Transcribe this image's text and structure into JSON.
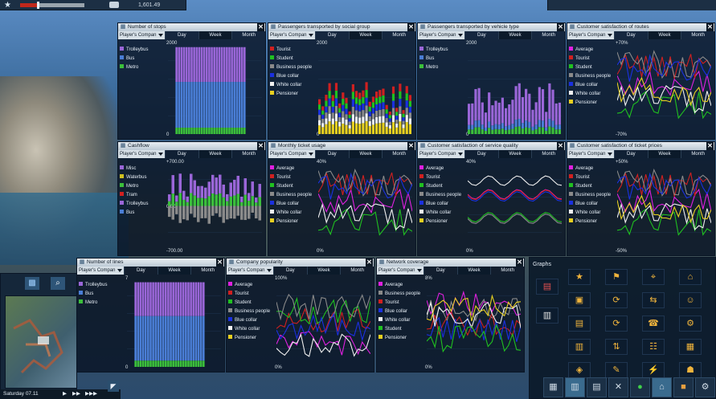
{
  "topbar": {
    "money": "1,601.49"
  },
  "company": "Player's Compan",
  "tabs": [
    "Day",
    "Week",
    "Month"
  ],
  "panels": {
    "stops": {
      "title": "Number of stops",
      "ymax": "2000",
      "ymin": "0",
      "legend": [
        {
          "label": "Trolleybus",
          "color": "#9a66d8"
        },
        {
          "label": "Bus",
          "color": "#4a7ed6"
        },
        {
          "label": "Metro",
          "color": "#3bbf3b"
        }
      ]
    },
    "social": {
      "title": "Passengers transported by social group",
      "ymax": "2000",
      "ymin": "0",
      "legend": [
        {
          "label": "Tourist",
          "color": "#d02020"
        },
        {
          "label": "Student",
          "color": "#20c020"
        },
        {
          "label": "Business people",
          "color": "#8a8a8a"
        },
        {
          "label": "Blue collar",
          "color": "#1a30e0"
        },
        {
          "label": "White collar",
          "color": "#f0f0f0"
        },
        {
          "label": "Pensioner",
          "color": "#e8d020"
        }
      ]
    },
    "vehicle": {
      "title": "Passengers transported by vehicle type",
      "ymax": "2000",
      "ymin": "0",
      "legend": [
        {
          "label": "Trolleybus",
          "color": "#9a66d8"
        },
        {
          "label": "Bus",
          "color": "#4a7ed6"
        },
        {
          "label": "Metro",
          "color": "#3bbf3b"
        }
      ]
    },
    "routes": {
      "title": "Customer satisfaction of routes",
      "ymax": "+70%",
      "ymin": "-70%",
      "legend": [
        {
          "label": "Average",
          "color": "#e020e0"
        },
        {
          "label": "Tourist",
          "color": "#d02020"
        },
        {
          "label": "Student",
          "color": "#20c020"
        },
        {
          "label": "Business people",
          "color": "#8a8a8a"
        },
        {
          "label": "Blue collar",
          "color": "#1a30e0"
        },
        {
          "label": "White collar",
          "color": "#f0f0f0"
        },
        {
          "label": "Pensioner",
          "color": "#e8d020"
        }
      ]
    },
    "cashflow": {
      "title": "Cashflow",
      "ymax": "+700.00",
      "ymid": "0.00",
      "ymin": "-700.00",
      "legend": [
        {
          "label": "Misc",
          "color": "#9a66d8"
        },
        {
          "label": "Waterbus",
          "color": "#d0c020"
        },
        {
          "label": "Metro",
          "color": "#3bbf3b"
        },
        {
          "label": "Tram",
          "color": "#d02020"
        },
        {
          "label": "Trolleybus",
          "color": "#9a66d8"
        },
        {
          "label": "Bus",
          "color": "#4a7ed6"
        }
      ]
    },
    "ticket": {
      "title": "Monthly ticket usage",
      "ymax": "40%",
      "ymin": "0%",
      "legend": [
        {
          "label": "Average",
          "color": "#e020e0"
        },
        {
          "label": "Tourist",
          "color": "#d02020"
        },
        {
          "label": "Student",
          "color": "#20c020"
        },
        {
          "label": "Business people",
          "color": "#8a8a8a"
        },
        {
          "label": "Blue collar",
          "color": "#1a30e0"
        },
        {
          "label": "White collar",
          "color": "#f0f0f0"
        },
        {
          "label": "Pensioner",
          "color": "#e8d020"
        }
      ]
    },
    "service": {
      "title": "Customer satisfaction of service quality",
      "ymax": "40%",
      "ymin": "0%",
      "legend": [
        {
          "label": "Average",
          "color": "#e020e0"
        },
        {
          "label": "Tourist",
          "color": "#d02020"
        },
        {
          "label": "Student",
          "color": "#20c020"
        },
        {
          "label": "Business people",
          "color": "#8a8a8a"
        },
        {
          "label": "Blue collar",
          "color": "#1a30e0"
        },
        {
          "label": "White collar",
          "color": "#f0f0f0"
        },
        {
          "label": "Pensioner",
          "color": "#e8d020"
        }
      ]
    },
    "prices": {
      "title": "Customer satisfaction of ticket prices",
      "ymax": "+50%",
      "ymin": "-50%",
      "legend": [
        {
          "label": "Average",
          "color": "#e020e0"
        },
        {
          "label": "Tourist",
          "color": "#d02020"
        },
        {
          "label": "Student",
          "color": "#20c020"
        },
        {
          "label": "Business people",
          "color": "#8a8a8a"
        },
        {
          "label": "Blue collar",
          "color": "#1a30e0"
        },
        {
          "label": "White collar",
          "color": "#f0f0f0"
        },
        {
          "label": "Pensioner",
          "color": "#e8d020"
        }
      ]
    },
    "lines": {
      "title": "Number of lines",
      "ymax": "7",
      "ymin": "0",
      "legend": [
        {
          "label": "Trolleybus",
          "color": "#9a66d8"
        },
        {
          "label": "Bus",
          "color": "#4a7ed6"
        },
        {
          "label": "Metro",
          "color": "#3bbf3b"
        }
      ]
    },
    "popularity": {
      "title": "Company popularity",
      "ymax": "100%",
      "ymin": "0%",
      "legend": [
        {
          "label": "Average",
          "color": "#e020e0"
        },
        {
          "label": "Tourist",
          "color": "#d02020"
        },
        {
          "label": "Student",
          "color": "#20c020"
        },
        {
          "label": "Business people",
          "color": "#8a8a8a"
        },
        {
          "label": "Blue collar",
          "color": "#1a30e0"
        },
        {
          "label": "White collar",
          "color": "#f0f0f0"
        },
        {
          "label": "Pensioner",
          "color": "#e8d020"
        }
      ]
    },
    "coverage": {
      "title": "Network coverage",
      "ymax": "8%",
      "ymin": "0%",
      "legend": [
        {
          "label": "Average",
          "color": "#e020e0"
        },
        {
          "label": "Business people",
          "color": "#8a8a8a"
        },
        {
          "label": "Tourist",
          "color": "#d02020"
        },
        {
          "label": "Blue collar",
          "color": "#1a30e0"
        },
        {
          "label": "White collar",
          "color": "#f0f0f0"
        },
        {
          "label": "Student",
          "color": "#20c020"
        },
        {
          "label": "Pensioner",
          "color": "#e8d020"
        }
      ]
    }
  },
  "graphs_title": "Graphs",
  "date": "Saturday 07.11",
  "icons": {
    "star": "star-icon",
    "close": "close-icon"
  }
}
